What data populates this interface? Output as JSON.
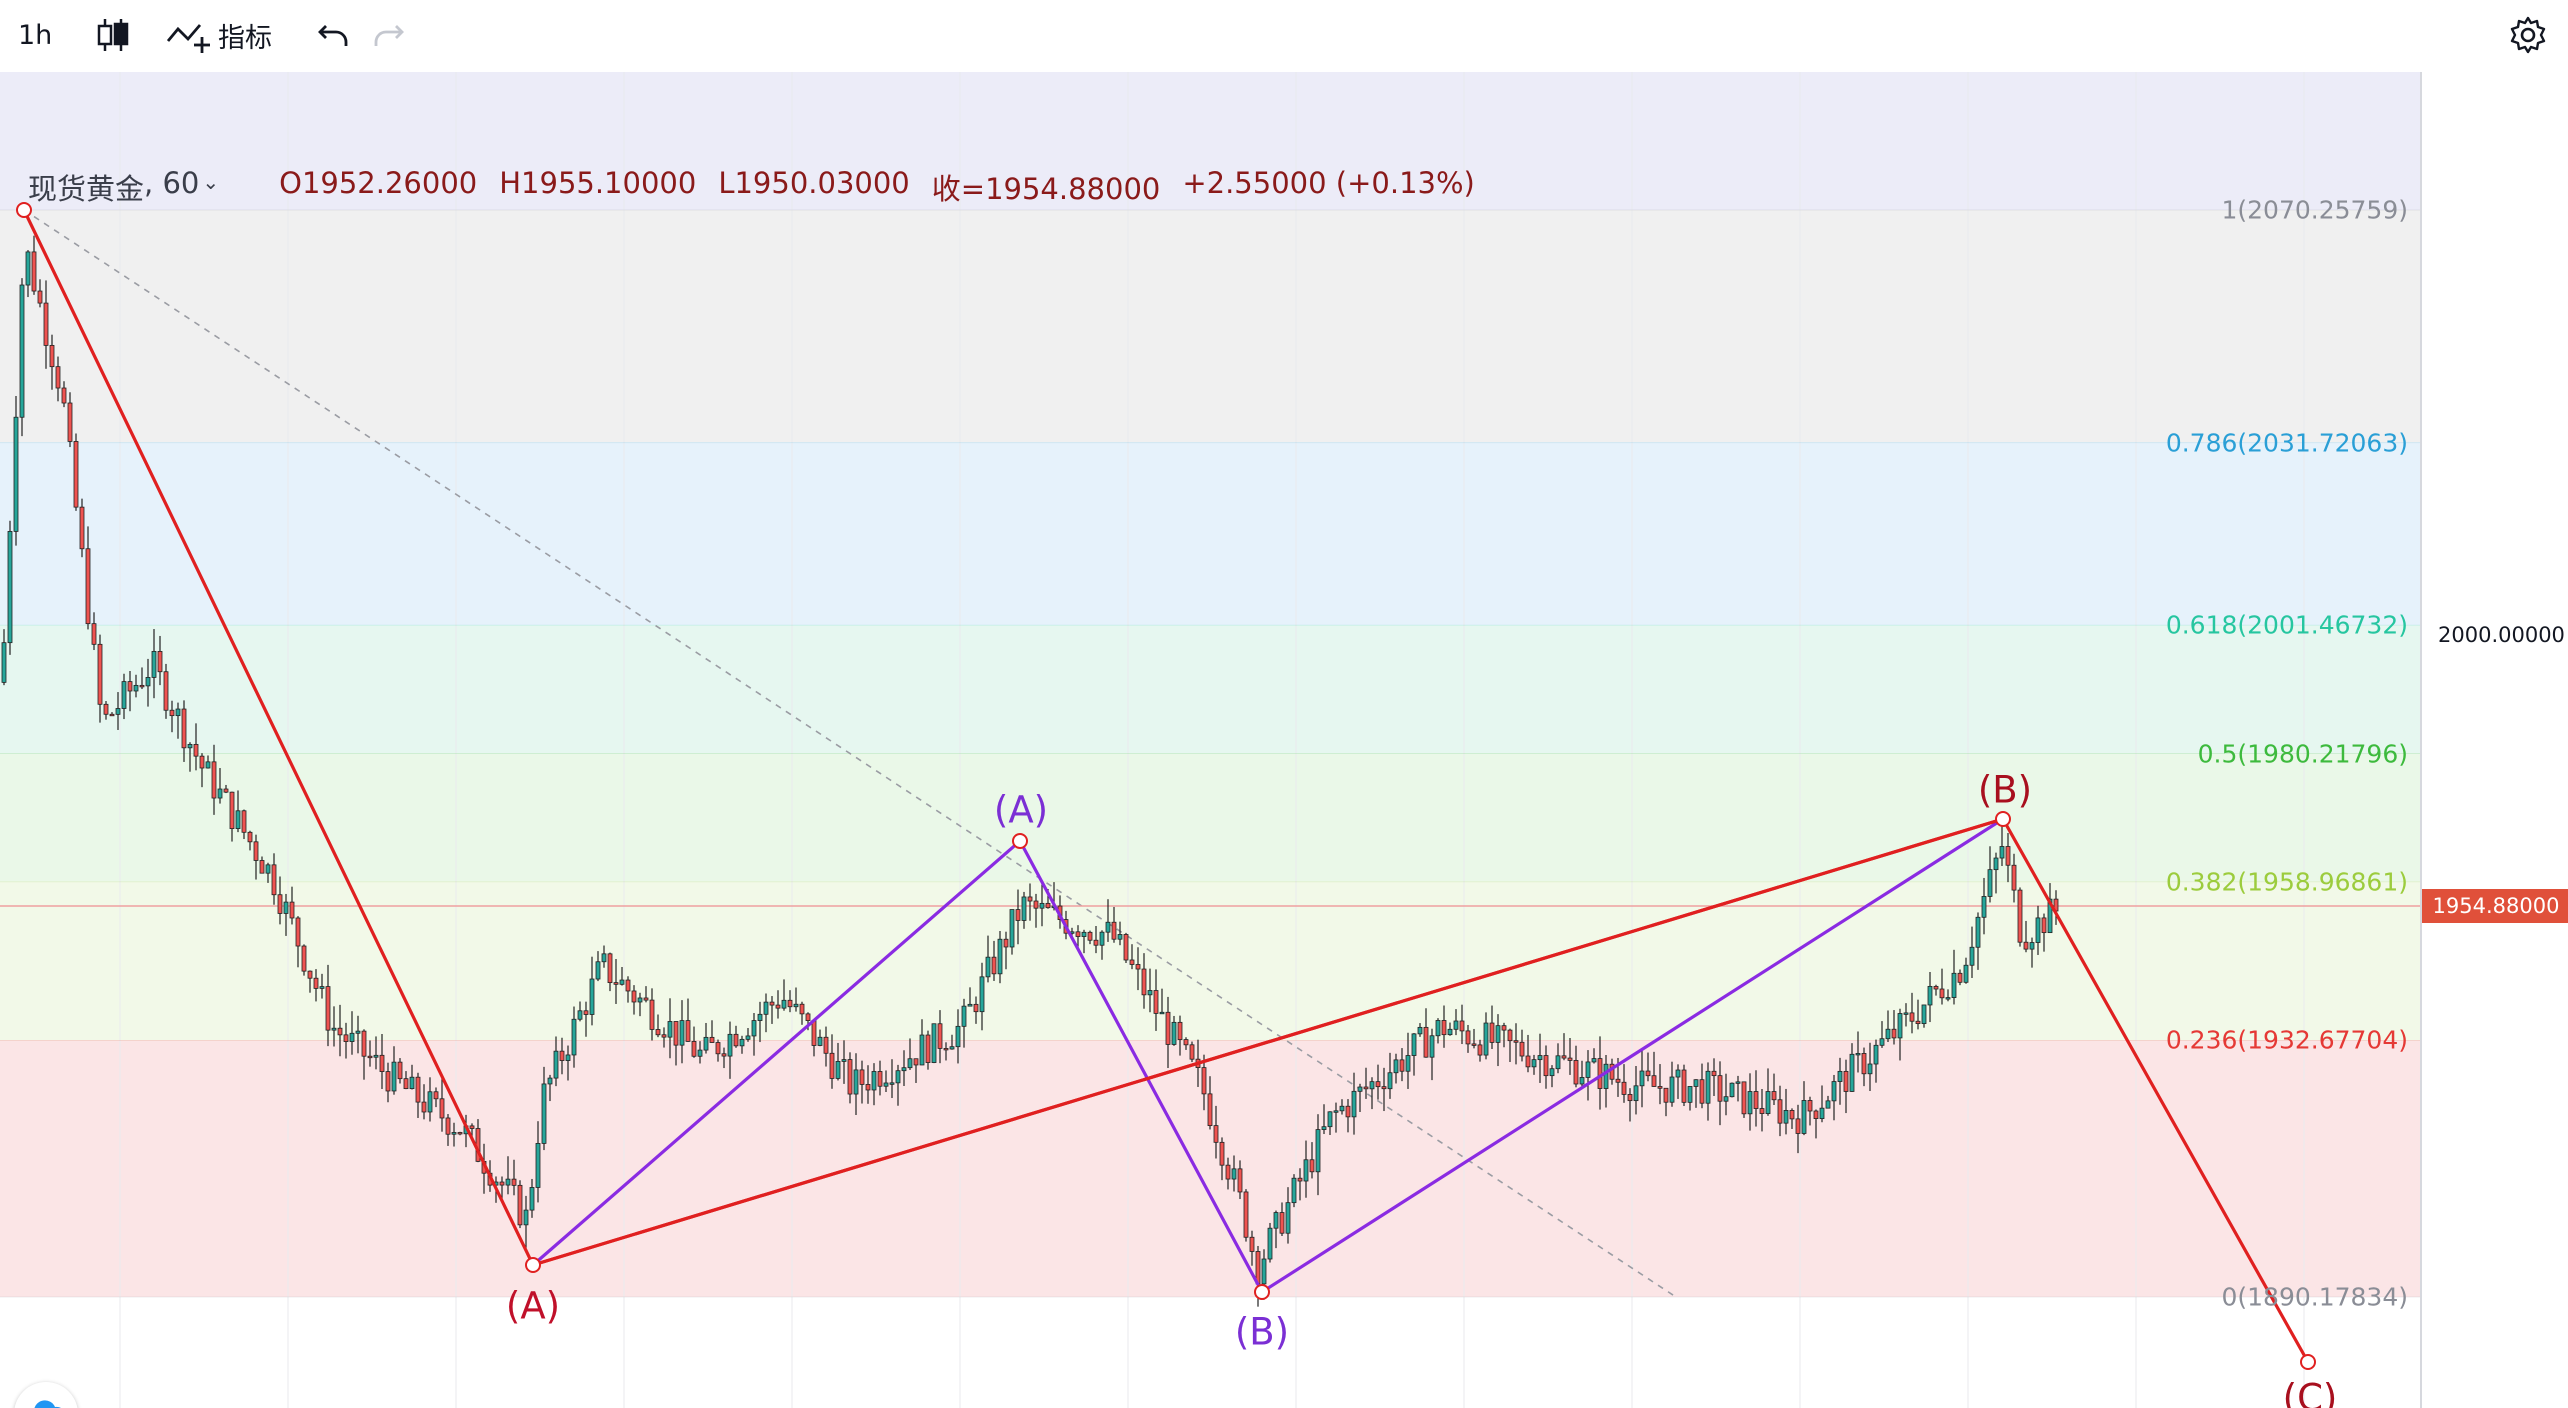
{
  "toolbar": {
    "interval": "1h",
    "indicators_label": "指标",
    "icons": [
      "candles-icon",
      "indicators-icon",
      "undo-icon",
      "redo-icon",
      "gear-icon"
    ]
  },
  "legend": {
    "symbol": "现货黄金",
    "interval": "60",
    "open": "O1952.26000",
    "high": "H1955.10000",
    "low": "L1950.03000",
    "close": "收=1954.88000",
    "change": "+2.55000 (+0.13%)"
  },
  "fib_levels": [
    {
      "ratio": "1",
      "price": 2070.25759,
      "label": "1(2070.25759)",
      "color": "#8a8d96",
      "band": "#ececf8"
    },
    {
      "ratio": "0.786",
      "price": 2031.72063,
      "label": "0.786(2031.72063)",
      "color": "#2a9fd6",
      "band": "#f0f0f0"
    },
    {
      "ratio": "0.618",
      "price": 2001.46732,
      "label": "0.618(2001.46732)",
      "color": "#26c6a0",
      "band": "#e6f2fb"
    },
    {
      "ratio": "0.5",
      "price": 1980.21796,
      "label": "0.5(1980.21796)",
      "color": "#3dba3d",
      "band": "#e6f7f0"
    },
    {
      "ratio": "0.382",
      "price": 1958.96861,
      "label": "0.382(1958.96861)",
      "color": "#9ccc3d",
      "band": "#eaf8e8"
    },
    {
      "ratio": "0.236",
      "price": 1932.67704,
      "label": "0.236(1932.67704)",
      "color": "#e53935",
      "band": "#f2f9e8"
    },
    {
      "ratio": "0",
      "price": 1890.17834,
      "label": "0(1890.17834)",
      "color": "#8a8d96",
      "band": "#fbe5e6"
    }
  ],
  "price_axis": {
    "ticks": [
      "2000.00000"
    ],
    "last_price": "1954.88000",
    "last_price_color": "#e0503a"
  },
  "waves": {
    "major": [
      {
        "label": "(A)",
        "color": "#c0102a"
      },
      {
        "label": "(B)",
        "color": "#a80f1e"
      },
      {
        "label": "(C)",
        "color": "#a80f1e"
      }
    ],
    "minor": [
      {
        "label": "(A)",
        "color": "#7b2fd4"
      },
      {
        "label": "(B)",
        "color": "#7b2fd4"
      }
    ]
  },
  "colors": {
    "up_candle": "#26a69a",
    "down_candle": "#ef5350",
    "major_wave_line": "#e02020",
    "minor_wave_line": "#8a2be2"
  }
}
